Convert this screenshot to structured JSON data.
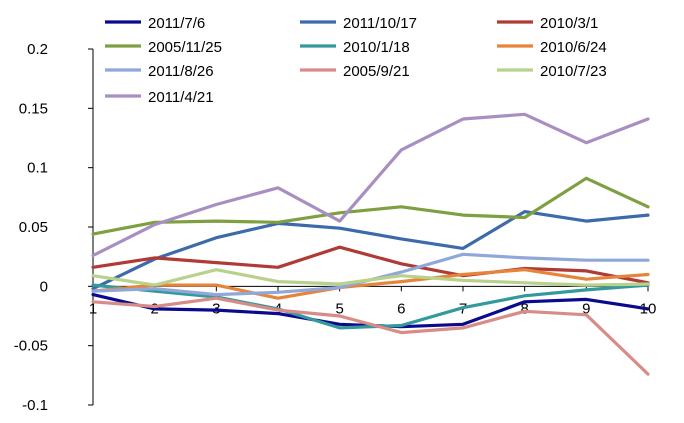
{
  "chart_data": {
    "type": "line",
    "title": "",
    "xlabel": "",
    "ylabel": "",
    "categories": [
      "1",
      "2",
      "3",
      "4",
      "5",
      "6",
      "7",
      "8",
      "9",
      "10"
    ],
    "ylim": [
      -0.1,
      0.2
    ],
    "yticks": [
      -0.1,
      -0.05,
      0,
      0.05,
      0.1,
      0.15,
      0.2
    ],
    "ytick_labels": [
      "-0.1",
      "-0.05",
      "0",
      "0.05",
      "0.1",
      "0.15",
      "0.2"
    ],
    "grid": false,
    "legend_position": "top",
    "series": [
      {
        "name": "2011/7/6",
        "color": "#0a0a8c",
        "values": [
          -0.007,
          -0.019,
          -0.02,
          -0.023,
          -0.032,
          -0.034,
          -0.032,
          -0.013,
          -0.011,
          -0.019
        ]
      },
      {
        "name": "2011/10/17",
        "color": "#3d6aaa",
        "values": [
          -0.002,
          0.023,
          0.041,
          0.053,
          0.049,
          0.04,
          0.032,
          0.063,
          0.055,
          0.06
        ]
      },
      {
        "name": "2010/3/1",
        "color": "#b03a36",
        "values": [
          0.016,
          0.024,
          0.02,
          0.016,
          0.033,
          0.019,
          0.009,
          0.015,
          0.013,
          0.003
        ]
      },
      {
        "name": "2005/11/25",
        "color": "#7fa040",
        "values": [
          0.044,
          0.054,
          0.055,
          0.054,
          0.062,
          0.067,
          0.06,
          0.058,
          0.091,
          0.067
        ]
      },
      {
        "name": "2010/1/18",
        "color": "#34999c",
        "values": [
          0.001,
          -0.004,
          -0.009,
          -0.019,
          -0.035,
          -0.033,
          -0.018,
          -0.008,
          -0.003,
          0.001
        ]
      },
      {
        "name": "2010/6/24",
        "color": "#e6843c",
        "values": [
          -0.004,
          0.001,
          0.001,
          -0.01,
          -0.001,
          0.004,
          0.01,
          0.014,
          0.006,
          0.01
        ]
      },
      {
        "name": "2011/8/26",
        "color": "#8fa8d8",
        "values": [
          -0.004,
          -0.002,
          -0.007,
          -0.005,
          -0.001,
          0.012,
          0.027,
          0.024,
          0.022,
          0.022
        ]
      },
      {
        "name": "2005/9/21",
        "color": "#d88c88",
        "values": [
          -0.013,
          -0.017,
          -0.01,
          -0.02,
          -0.025,
          -0.039,
          -0.035,
          -0.021,
          -0.024,
          -0.074
        ]
      },
      {
        "name": "2010/7/23",
        "color": "#b8d28c",
        "values": [
          0.009,
          0.001,
          0.014,
          0.004,
          0.002,
          0.009,
          0.005,
          0.003,
          0.001,
          0.002
        ]
      },
      {
        "name": "2011/4/21",
        "color": "#a78fc2",
        "values": [
          0.026,
          0.052,
          0.069,
          0.083,
          0.055,
          0.115,
          0.141,
          0.145,
          0.121,
          0.141
        ]
      }
    ]
  }
}
